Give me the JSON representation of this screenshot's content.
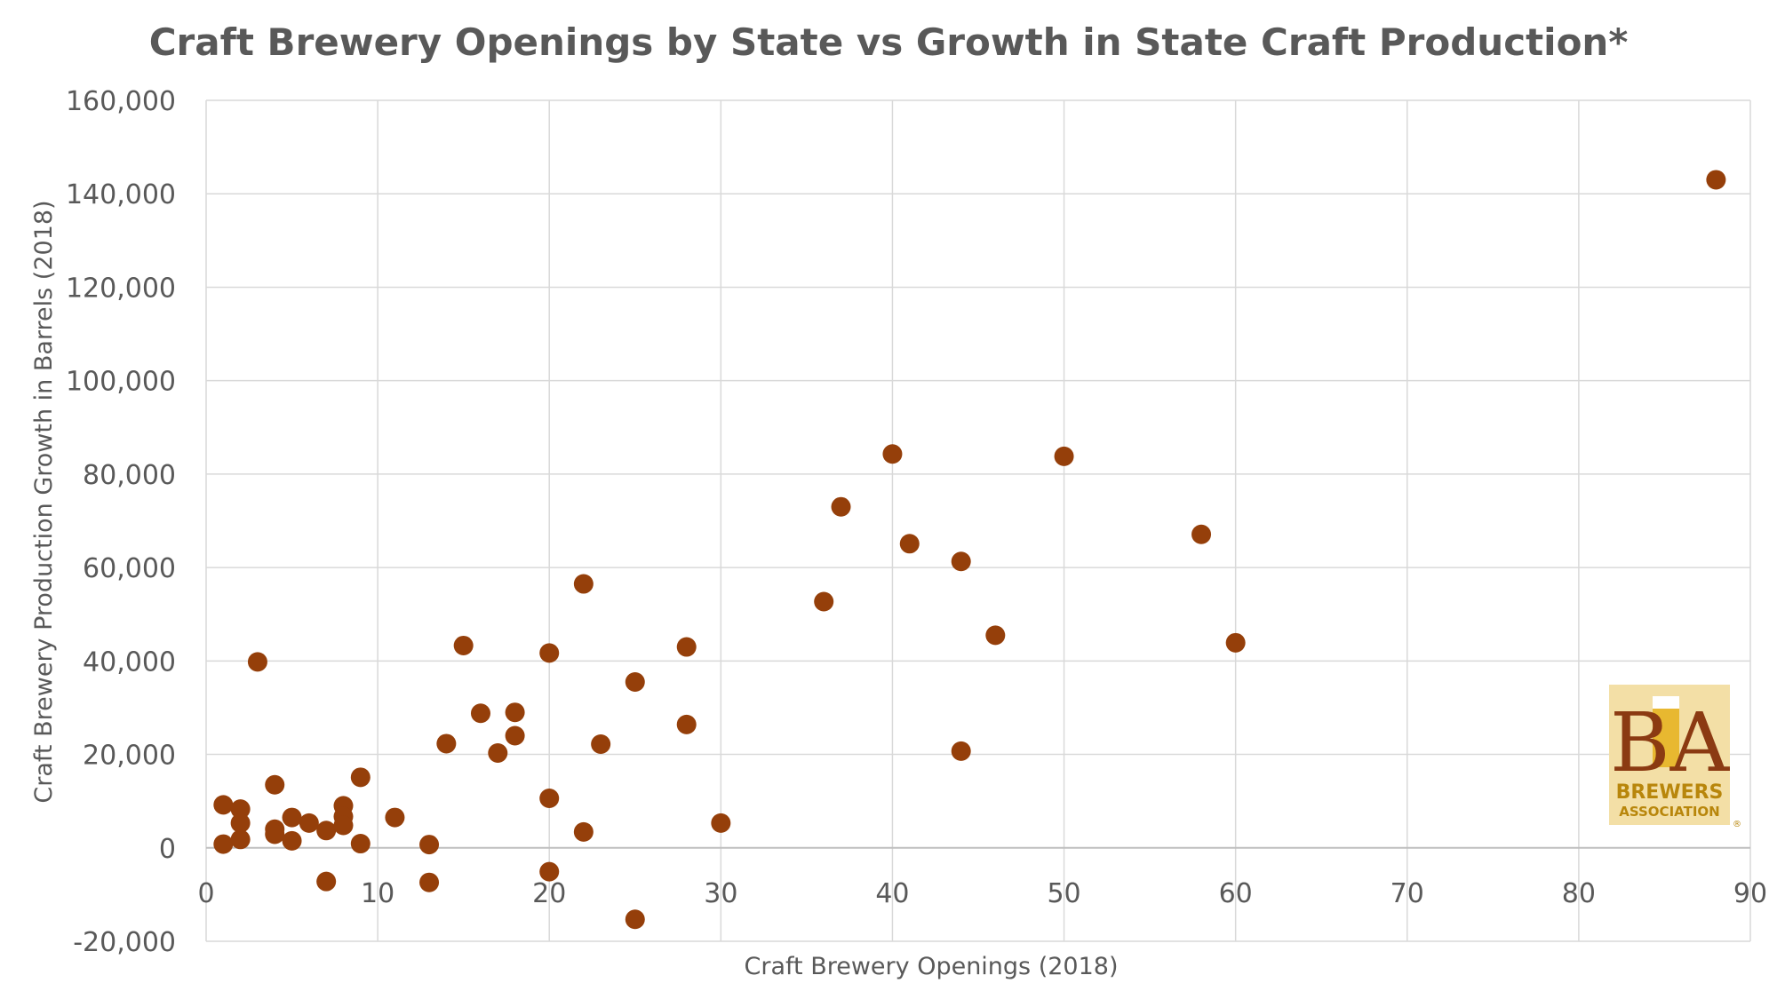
{
  "chart_data": {
    "type": "scatter",
    "title": "Craft Brewery Openings by State vs Growth in State Craft Production*",
    "xlabel": "Craft Brewery Openings (2018)",
    "ylabel": "Craft Brewery Production Growth in Barrels (2018)",
    "xlim": [
      0,
      90
    ],
    "ylim": [
      -20000,
      160000
    ],
    "xticks": [
      0,
      10,
      20,
      30,
      40,
      50,
      60,
      70,
      80,
      90
    ],
    "yticks": [
      -20000,
      0,
      20000,
      40000,
      60000,
      80000,
      100000,
      120000,
      140000,
      160000
    ],
    "xtick_labels": [
      "0",
      "10",
      "20",
      "30",
      "40",
      "50",
      "60",
      "70",
      "80",
      "90"
    ],
    "ytick_labels": [
      "-20,000",
      "0",
      "20,000",
      "40,000",
      "60,000",
      "80,000",
      "100,000",
      "120,000",
      "140,000",
      "160,000"
    ],
    "grid": true,
    "marker_color": "#953F0A",
    "points": [
      {
        "x": 1,
        "y": 9200
      },
      {
        "x": 1,
        "y": 800
      },
      {
        "x": 2,
        "y": 8300
      },
      {
        "x": 2,
        "y": 5300
      },
      {
        "x": 2,
        "y": 1800
      },
      {
        "x": 3,
        "y": 39800
      },
      {
        "x": 4,
        "y": 13500
      },
      {
        "x": 4,
        "y": 4000
      },
      {
        "x": 4,
        "y": 2900
      },
      {
        "x": 5,
        "y": 6500
      },
      {
        "x": 5,
        "y": 1500
      },
      {
        "x": 6,
        "y": 5300
      },
      {
        "x": 7,
        "y": 3700
      },
      {
        "x": 7,
        "y": -7200
      },
      {
        "x": 8,
        "y": 9000
      },
      {
        "x": 8,
        "y": 6700
      },
      {
        "x": 8,
        "y": 4800
      },
      {
        "x": 9,
        "y": 15100
      },
      {
        "x": 9,
        "y": 900
      },
      {
        "x": 11,
        "y": 6500
      },
      {
        "x": 13,
        "y": 700
      },
      {
        "x": 13,
        "y": -7400
      },
      {
        "x": 14,
        "y": 22300
      },
      {
        "x": 15,
        "y": 43300
      },
      {
        "x": 16,
        "y": 28800
      },
      {
        "x": 17,
        "y": 20300
      },
      {
        "x": 18,
        "y": 29000
      },
      {
        "x": 18,
        "y": 24000
      },
      {
        "x": 20,
        "y": 41700
      },
      {
        "x": 20,
        "y": 10600
      },
      {
        "x": 20,
        "y": -5100
      },
      {
        "x": 22,
        "y": 56500
      },
      {
        "x": 22,
        "y": 3400
      },
      {
        "x": 23,
        "y": 22200
      },
      {
        "x": 25,
        "y": 35500
      },
      {
        "x": 25,
        "y": -15300
      },
      {
        "x": 28,
        "y": 43000
      },
      {
        "x": 28,
        "y": 26400
      },
      {
        "x": 30,
        "y": 5300
      },
      {
        "x": 36,
        "y": 52700
      },
      {
        "x": 37,
        "y": 73000
      },
      {
        "x": 40,
        "y": 84300
      },
      {
        "x": 41,
        "y": 65100
      },
      {
        "x": 44,
        "y": 61300
      },
      {
        "x": 44,
        "y": 20700
      },
      {
        "x": 46,
        "y": 45500
      },
      {
        "x": 50,
        "y": 83800
      },
      {
        "x": 58,
        "y": 67100
      },
      {
        "x": 60,
        "y": 43900
      },
      {
        "x": 88,
        "y": 143000
      }
    ]
  },
  "logo": {
    "letters": "BA",
    "line1": "BREWERS",
    "line2": "ASSOCIATION",
    "registered": "®",
    "bg_color": "#F3DFA6",
    "letter_color": "#8B3A12",
    "text_color": "#B8860B"
  }
}
